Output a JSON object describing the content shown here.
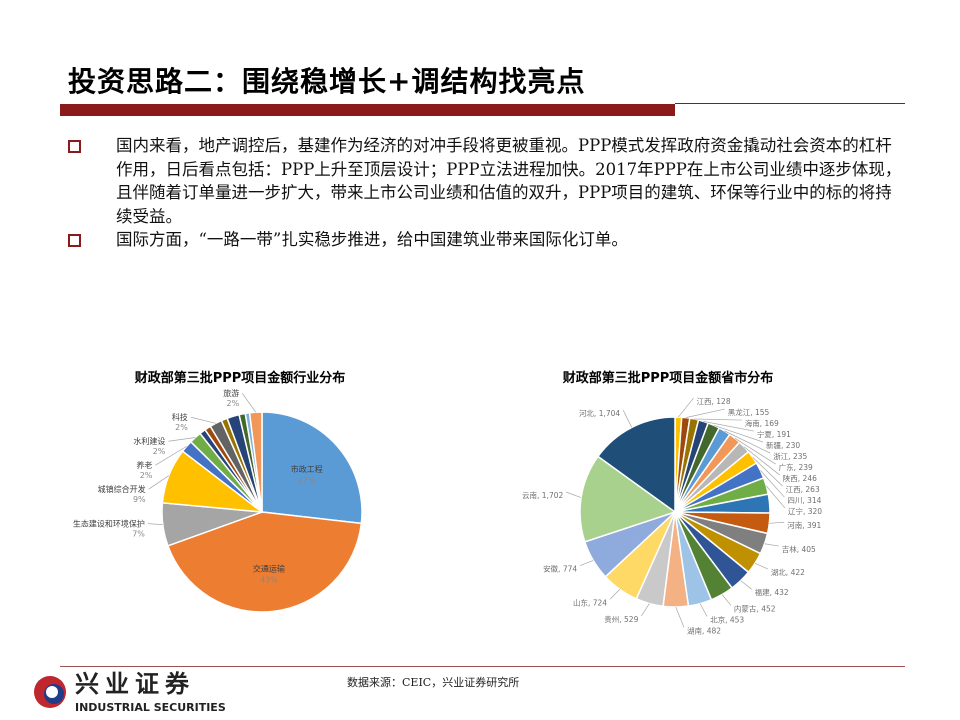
{
  "title": "投资思路二：围绕稳增长+调结构找亮点",
  "bullets": [
    "国内来看，地产调控后，基建作为经济的对冲手段将更被重视。PPP模式发挥政府资金撬动社会资本的杠杆作用，日后看点包括：PPP上升至顶层设计；PPP立法进程加快。2017年PPP在上市公司业绩中逐步体现，且伴随着订单量进一步扩大，带来上市公司业绩和估值的双升，PPP项目的建筑、环保等行业中的标的将持续受益。",
    "国际方面，“一路一带”扎实稳步推进，给中国建筑业带来国际化订单。"
  ],
  "source": "数据来源：CEIC，兴业证券研究所",
  "logo": {
    "cn": "兴业证券",
    "en": "INDUSTRIAL SECURITIES"
  },
  "chart_data": [
    {
      "type": "pie",
      "title": "财政部第三批PPP项目金额行业分布",
      "unit": "%",
      "slices": [
        {
          "label": "市政工程",
          "value": 27,
          "color": "#5B9BD5"
        },
        {
          "label": "交通运输",
          "value": 43,
          "color": "#ED7D31"
        },
        {
          "label": "生态建设和环境保护",
          "value": 7,
          "color": "#A5A5A5"
        },
        {
          "label": "城镇综合开发",
          "value": 9,
          "color": "#FFC000"
        },
        {
          "label": "养老",
          "value": 2,
          "color": "#4472C4"
        },
        {
          "label": "水利建设",
          "value": 2,
          "color": "#70AD47"
        },
        {
          "label": "",
          "value": 1,
          "color": "#264478"
        },
        {
          "label": "",
          "value": 1,
          "color": "#9E480E"
        },
        {
          "label": "科技",
          "value": 2,
          "color": "#636363"
        },
        {
          "label": "",
          "value": 1,
          "color": "#997300"
        },
        {
          "label": "",
          "value": 2,
          "color": "#264478"
        },
        {
          "label": "",
          "value": 1,
          "color": "#43682B"
        },
        {
          "label": "",
          "value": 0.7,
          "color": "#7CAFDD"
        },
        {
          "label": "旅游",
          "value": 2,
          "color": "#F1975A"
        }
      ]
    },
    {
      "type": "pie",
      "title": "财政部第三批PPP项目金额省市分布",
      "slices": [
        {
          "label": "江西",
          "value": 128,
          "color": "#FFC000"
        },
        {
          "label": "黑龙江",
          "value": 155,
          "color": "#9E480E"
        },
        {
          "label": "海南",
          "value": 169,
          "color": "#997300"
        },
        {
          "label": "宁夏",
          "value": 191,
          "color": "#264478"
        },
        {
          "label": "新疆",
          "value": 230,
          "color": "#43682B"
        },
        {
          "label": "浙江",
          "value": 235,
          "color": "#5B9BD5"
        },
        {
          "label": "广东",
          "value": 239,
          "color": "#F1975A"
        },
        {
          "label": "陕西",
          "value": 246,
          "color": "#B7B7B7"
        },
        {
          "label": "江西",
          "value": 263,
          "color": "#FFC000"
        },
        {
          "label": "四川",
          "value": 314,
          "color": "#4472C4"
        },
        {
          "label": "辽宁",
          "value": 320,
          "color": "#70AD47"
        },
        {
          "label": "",
          "value": 360,
          "color": "#2E75B6"
        },
        {
          "label": "河南",
          "value": 391,
          "color": "#C55A11"
        },
        {
          "label": "吉林",
          "value": 405,
          "color": "#7F7F7F"
        },
        {
          "label": "湖北",
          "value": 422,
          "color": "#BF9000"
        },
        {
          "label": "福建",
          "value": 432,
          "color": "#2F5597"
        },
        {
          "label": "内蒙古",
          "value": 452,
          "color": "#548235"
        },
        {
          "label": "北京",
          "value": 453,
          "color": "#9DC3E6"
        },
        {
          "label": "湖南",
          "value": 482,
          "color": "#F4B183"
        },
        {
          "label": "贵州",
          "value": 529,
          "color": "#C9C9C9"
        },
        {
          "label": "山东",
          "value": 724,
          "color": "#FFD966"
        },
        {
          "label": "安徽",
          "value": 774,
          "color": "#8FAADC"
        },
        {
          "label": "云南",
          "value": 1702,
          "color": "#A9D18E"
        },
        {
          "label": "河北",
          "value": 1704,
          "color": "#1F4E79"
        }
      ]
    }
  ]
}
